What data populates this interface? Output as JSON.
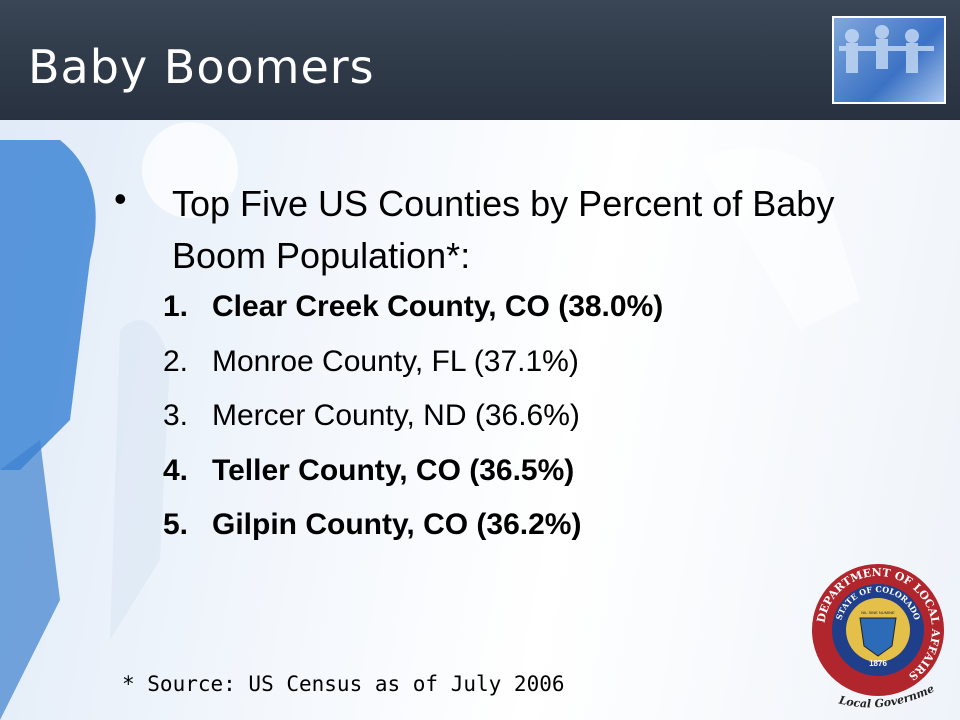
{
  "header": {
    "title": "Baby Boomers"
  },
  "bullet": {
    "symbol": "•",
    "text": "Top Five US Counties by Percent of Baby Boom Population*:"
  },
  "list": [
    {
      "number": "1.",
      "text": "Clear Creek County, CO (38.0%)",
      "bold": true
    },
    {
      "number": "2.",
      "text": "Monroe County, FL (37.1%)",
      "bold": false
    },
    {
      "number": "3.",
      "text": "Mercer County, ND (36.6%)",
      "bold": false
    },
    {
      "number": "4.",
      "text": "Teller County, CO (36.5%)",
      "bold": true
    },
    {
      "number": "5.",
      "text": "Gilpin County, CO (36.2%)",
      "bold": true
    }
  ],
  "footnote": "* Source: US Census as of July 2006",
  "seal": {
    "outer": "DEPARTMENT OF LOCAL AFFAIRS",
    "inner": "STATE OF COLORADO",
    "motto": "NIL SINE NUMINE",
    "year": "1876",
    "caption": "Local Government"
  }
}
